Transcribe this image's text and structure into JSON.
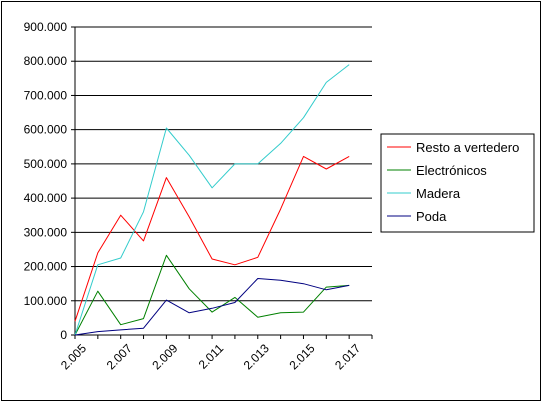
{
  "chart_data": {
    "type": "line",
    "title": "",
    "xlabel": "",
    "ylabel": "",
    "x": [
      2005,
      2006,
      2007,
      2008,
      2009,
      2010,
      2011,
      2012,
      2013,
      2014,
      2015,
      2016,
      2017,
      2018
    ],
    "x_tick_labels": [
      "2.005",
      "2.007",
      "2.009",
      "2.011",
      "2.013",
      "2.015",
      "2.017"
    ],
    "x_tick_values": [
      2005,
      2007,
      2009,
      2011,
      2013,
      2015,
      2017
    ],
    "ylim": [
      0,
      900000
    ],
    "y_ticks": [
      0,
      100000,
      200000,
      300000,
      400000,
      500000,
      600000,
      700000,
      800000,
      900000
    ],
    "y_tick_labels": [
      "0",
      "100.000",
      "200.000",
      "300.000",
      "400.000",
      "500.000",
      "600.000",
      "700.000",
      "800.000",
      "900.000"
    ],
    "grid": "horizontal",
    "legend_position": "right",
    "series": [
      {
        "name": "Resto a vertedero",
        "color": "#ff0000",
        "values": [
          40000,
          240000,
          350000,
          275000,
          460000,
          345000,
          222000,
          205000,
          227000,
          368000,
          522000,
          485000,
          522000,
          null
        ]
      },
      {
        "name": "Electrónicos",
        "color": "#008000",
        "values": [
          0,
          128000,
          30000,
          48000,
          233000,
          135000,
          67000,
          110000,
          52000,
          65000,
          67000,
          140000,
          145000,
          null
        ]
      },
      {
        "name": "Madera",
        "color": "#33cccc",
        "values": [
          0,
          205000,
          225000,
          360000,
          605000,
          525000,
          430000,
          500000,
          500000,
          560000,
          635000,
          738000,
          790000,
          null
        ]
      },
      {
        "name": "Poda",
        "color": "#000080",
        "values": [
          0,
          10000,
          15000,
          20000,
          102000,
          65000,
          78000,
          95000,
          165000,
          160000,
          150000,
          132000,
          145000,
          null
        ]
      }
    ]
  }
}
